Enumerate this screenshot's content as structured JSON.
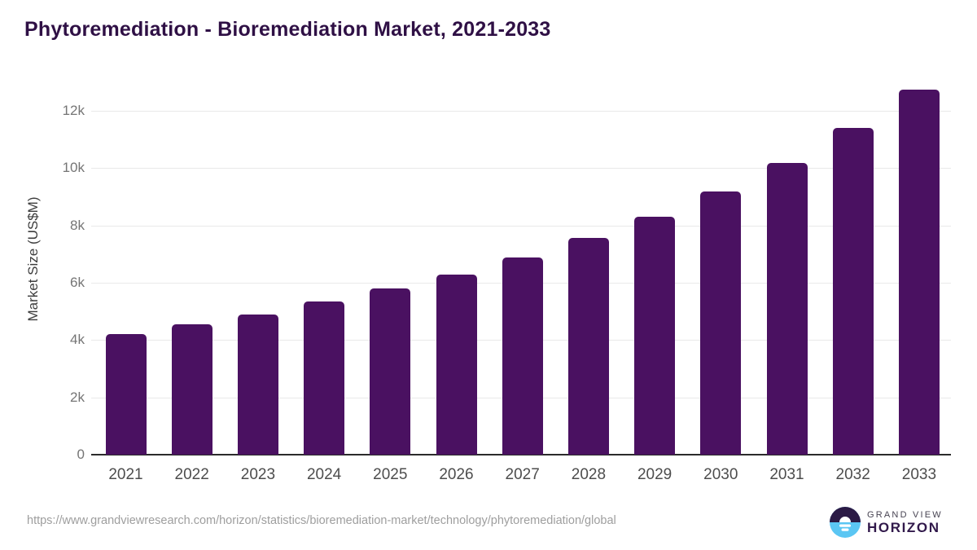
{
  "title": "Phytoremediation - Bioremediation Market, 2021-2033",
  "chart_data": {
    "type": "bar",
    "title": "Phytoremediation - Bioremediation Market, 2021-2033",
    "categories": [
      "2021",
      "2022",
      "2023",
      "2024",
      "2025",
      "2026",
      "2027",
      "2028",
      "2029",
      "2030",
      "2031",
      "2032",
      "2033"
    ],
    "values": [
      4220,
      4560,
      4900,
      5340,
      5790,
      6270,
      6880,
      7550,
      8300,
      9180,
      10180,
      11390,
      12740
    ],
    "xlabel": "",
    "ylabel": "Market Size (US$M)",
    "ylim": [
      0,
      13020
    ],
    "yticks": [
      {
        "value": 0,
        "label": "0"
      },
      {
        "value": 2000,
        "label": "2k"
      },
      {
        "value": 4000,
        "label": "4k"
      },
      {
        "value": 6000,
        "label": "6k"
      },
      {
        "value": 8000,
        "label": "8k"
      },
      {
        "value": 10000,
        "label": "10k"
      },
      {
        "value": 12000,
        "label": "12k"
      }
    ],
    "grid": true,
    "legend": false,
    "bar_color": "#4a1161"
  },
  "colors": {
    "bar": "#4a1161",
    "title": "#2f1045",
    "gridline": "#e9e9e9",
    "axis_line": "#2b2b2b",
    "y_tick_label": "#757575",
    "x_tick_label": "#4d4d4d",
    "source_url": "#9e9e9e",
    "logo_navy": "#2b1a45",
    "logo_blue": "#5bc6f3"
  },
  "footer": {
    "source_url": "https://www.grandviewresearch.com/horizon/statistics/bioremediation-market/technology/phytoremediation/global",
    "logo": {
      "line1": "GRAND VIEW",
      "line2": "HORIZON",
      "icon": "sunrise-horizon-icon"
    }
  }
}
